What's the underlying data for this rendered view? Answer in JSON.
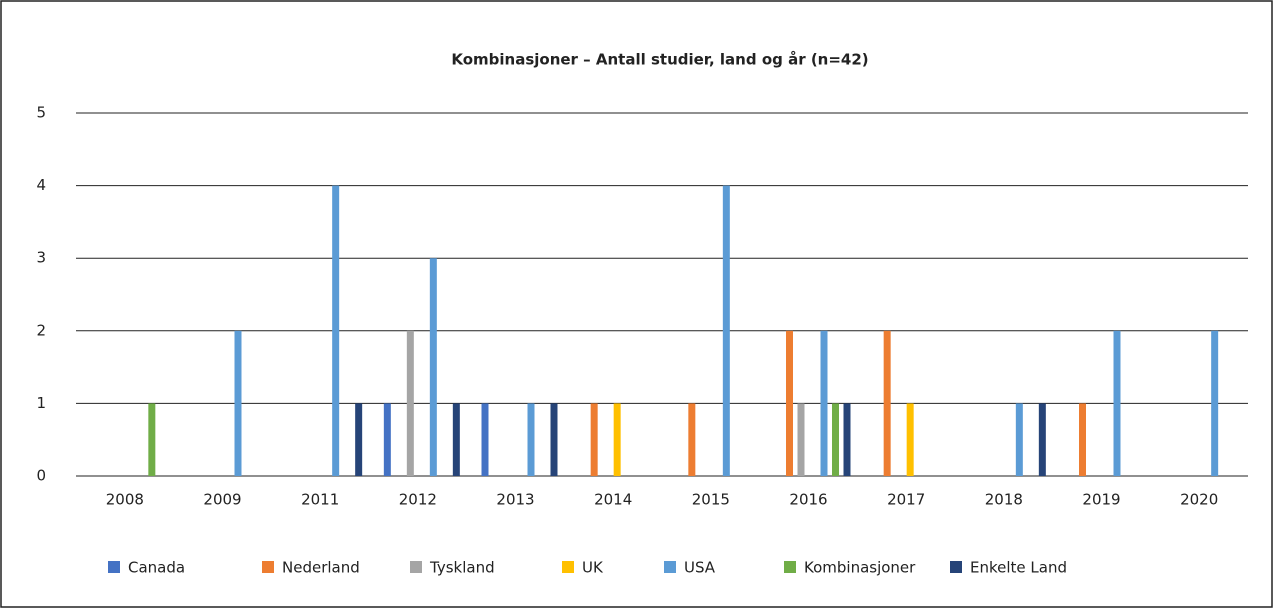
{
  "chart_data": {
    "type": "bar",
    "title": "Kombinasjoner – Antall studier, land og år (n=42)",
    "categories": [
      "2008",
      "2009",
      "2011",
      "2012",
      "2013",
      "2014",
      "2015",
      "2016",
      "2017",
      "2018",
      "2019",
      "2020"
    ],
    "series": [
      {
        "name": "Canada",
        "color": "#4472c4",
        "values": [
          0,
          0,
          0,
          1,
          1,
          0,
          0,
          0,
          0,
          0,
          0,
          0
        ]
      },
      {
        "name": "Nederland",
        "color": "#ed7d31",
        "values": [
          0,
          0,
          0,
          0,
          0,
          1,
          1,
          2,
          2,
          0,
          1,
          0
        ]
      },
      {
        "name": "Tyskland",
        "color": "#a5a5a5",
        "values": [
          0,
          0,
          0,
          2,
          0,
          0,
          0,
          1,
          0,
          0,
          0,
          0
        ]
      },
      {
        "name": "UK",
        "color": "#ffc000",
        "values": [
          0,
          0,
          0,
          0,
          0,
          1,
          0,
          0,
          1,
          0,
          0,
          0
        ]
      },
      {
        "name": "USA",
        "color": "#5b9bd5",
        "values": [
          0,
          2,
          4,
          3,
          1,
          0,
          4,
          2,
          0,
          1,
          2,
          2
        ]
      },
      {
        "name": "Kombinasjoner",
        "color": "#70ad47",
        "values": [
          1,
          0,
          0,
          0,
          0,
          0,
          0,
          1,
          0,
          0,
          0,
          0
        ]
      },
      {
        "name": "Enkelte Land",
        "color": "#264478",
        "values": [
          0,
          0,
          1,
          1,
          1,
          0,
          0,
          1,
          0,
          1,
          0,
          0
        ]
      }
    ],
    "ylim": [
      0,
      5
    ],
    "yticks": [
      0,
      1,
      2,
      3,
      4,
      5
    ],
    "grid": true,
    "legend": "bottom"
  }
}
